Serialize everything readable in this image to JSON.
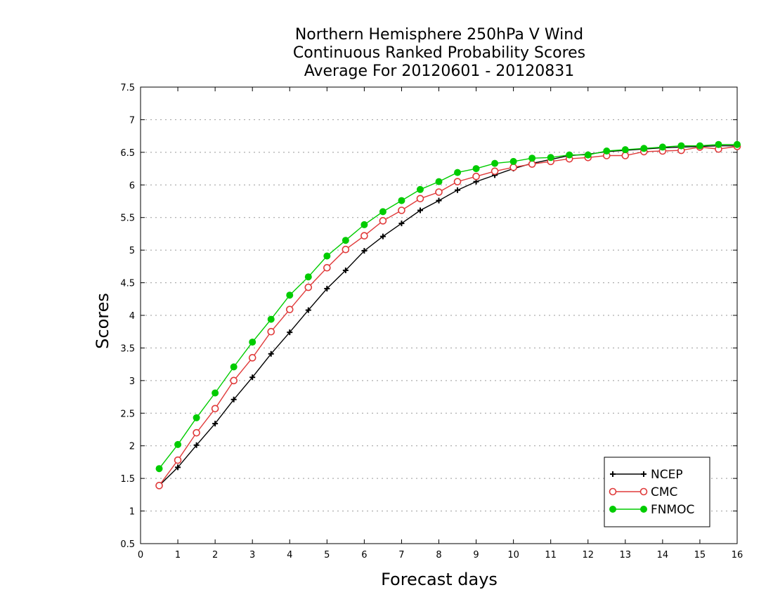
{
  "chart_data": {
    "type": "line",
    "title": [
      "Northern Hemisphere 250hPa V Wind",
      "Continuous Ranked Probability Scores",
      "Average For 20120601 - 20120831"
    ],
    "xlabel": "Forecast days",
    "ylabel": "Scores",
    "xlim": [
      0,
      16
    ],
    "ylim": [
      0.5,
      7.5
    ],
    "xticks": [
      "0",
      "1",
      "2",
      "3",
      "4",
      "5",
      "6",
      "7",
      "8",
      "9",
      "10",
      "11",
      "12",
      "13",
      "14",
      "15",
      "16"
    ],
    "yticks": [
      "0.5",
      "1",
      "1.5",
      "2",
      "2.5",
      "3",
      "3.5",
      "4",
      "4.5",
      "5",
      "5.5",
      "6",
      "6.5",
      "7",
      "7.5"
    ],
    "grid": "horizontal dotted",
    "legend_position": "bottom-right",
    "x": [
      0.5,
      1,
      1.5,
      2,
      2.5,
      3,
      3.5,
      4,
      4.5,
      5,
      5.5,
      6,
      6.5,
      7,
      7.5,
      8,
      8.5,
      9,
      9.5,
      10,
      10.5,
      11,
      11.5,
      12,
      12.5,
      13,
      13.5,
      14,
      14.5,
      15,
      15.5,
      16
    ],
    "series": [
      {
        "name": "NCEP",
        "color": "#000000",
        "marker": "plus",
        "values": [
          1.39,
          1.67,
          2.01,
          2.34,
          2.71,
          3.05,
          3.41,
          3.74,
          4.08,
          4.41,
          4.69,
          4.99,
          5.21,
          5.41,
          5.61,
          5.76,
          5.92,
          6.05,
          6.15,
          6.25,
          6.33,
          6.39,
          6.45,
          6.47,
          6.51,
          6.53,
          6.55,
          6.57,
          6.58,
          6.59,
          6.6,
          6.6
        ]
      },
      {
        "name": "CMC",
        "color": "#e03a3a",
        "marker": "open-circle",
        "values": [
          1.39,
          1.78,
          2.2,
          2.57,
          3.0,
          3.35,
          3.75,
          4.09,
          4.43,
          4.73,
          5.01,
          5.22,
          5.45,
          5.61,
          5.79,
          5.89,
          6.05,
          6.13,
          6.21,
          6.27,
          6.32,
          6.36,
          6.4,
          6.42,
          6.45,
          6.45,
          6.51,
          6.52,
          6.53,
          6.58,
          6.55,
          6.59
        ]
      },
      {
        "name": "FNMOC",
        "color": "#00cc00",
        "marker": "filled-circle",
        "values": [
          1.65,
          2.02,
          2.43,
          2.81,
          3.21,
          3.59,
          3.94,
          4.31,
          4.59,
          4.91,
          5.15,
          5.39,
          5.59,
          5.76,
          5.93,
          6.05,
          6.19,
          6.25,
          6.33,
          6.36,
          6.41,
          6.42,
          6.46,
          6.46,
          6.52,
          6.54,
          6.56,
          6.58,
          6.6,
          6.6,
          6.62,
          6.62
        ]
      }
    ]
  }
}
